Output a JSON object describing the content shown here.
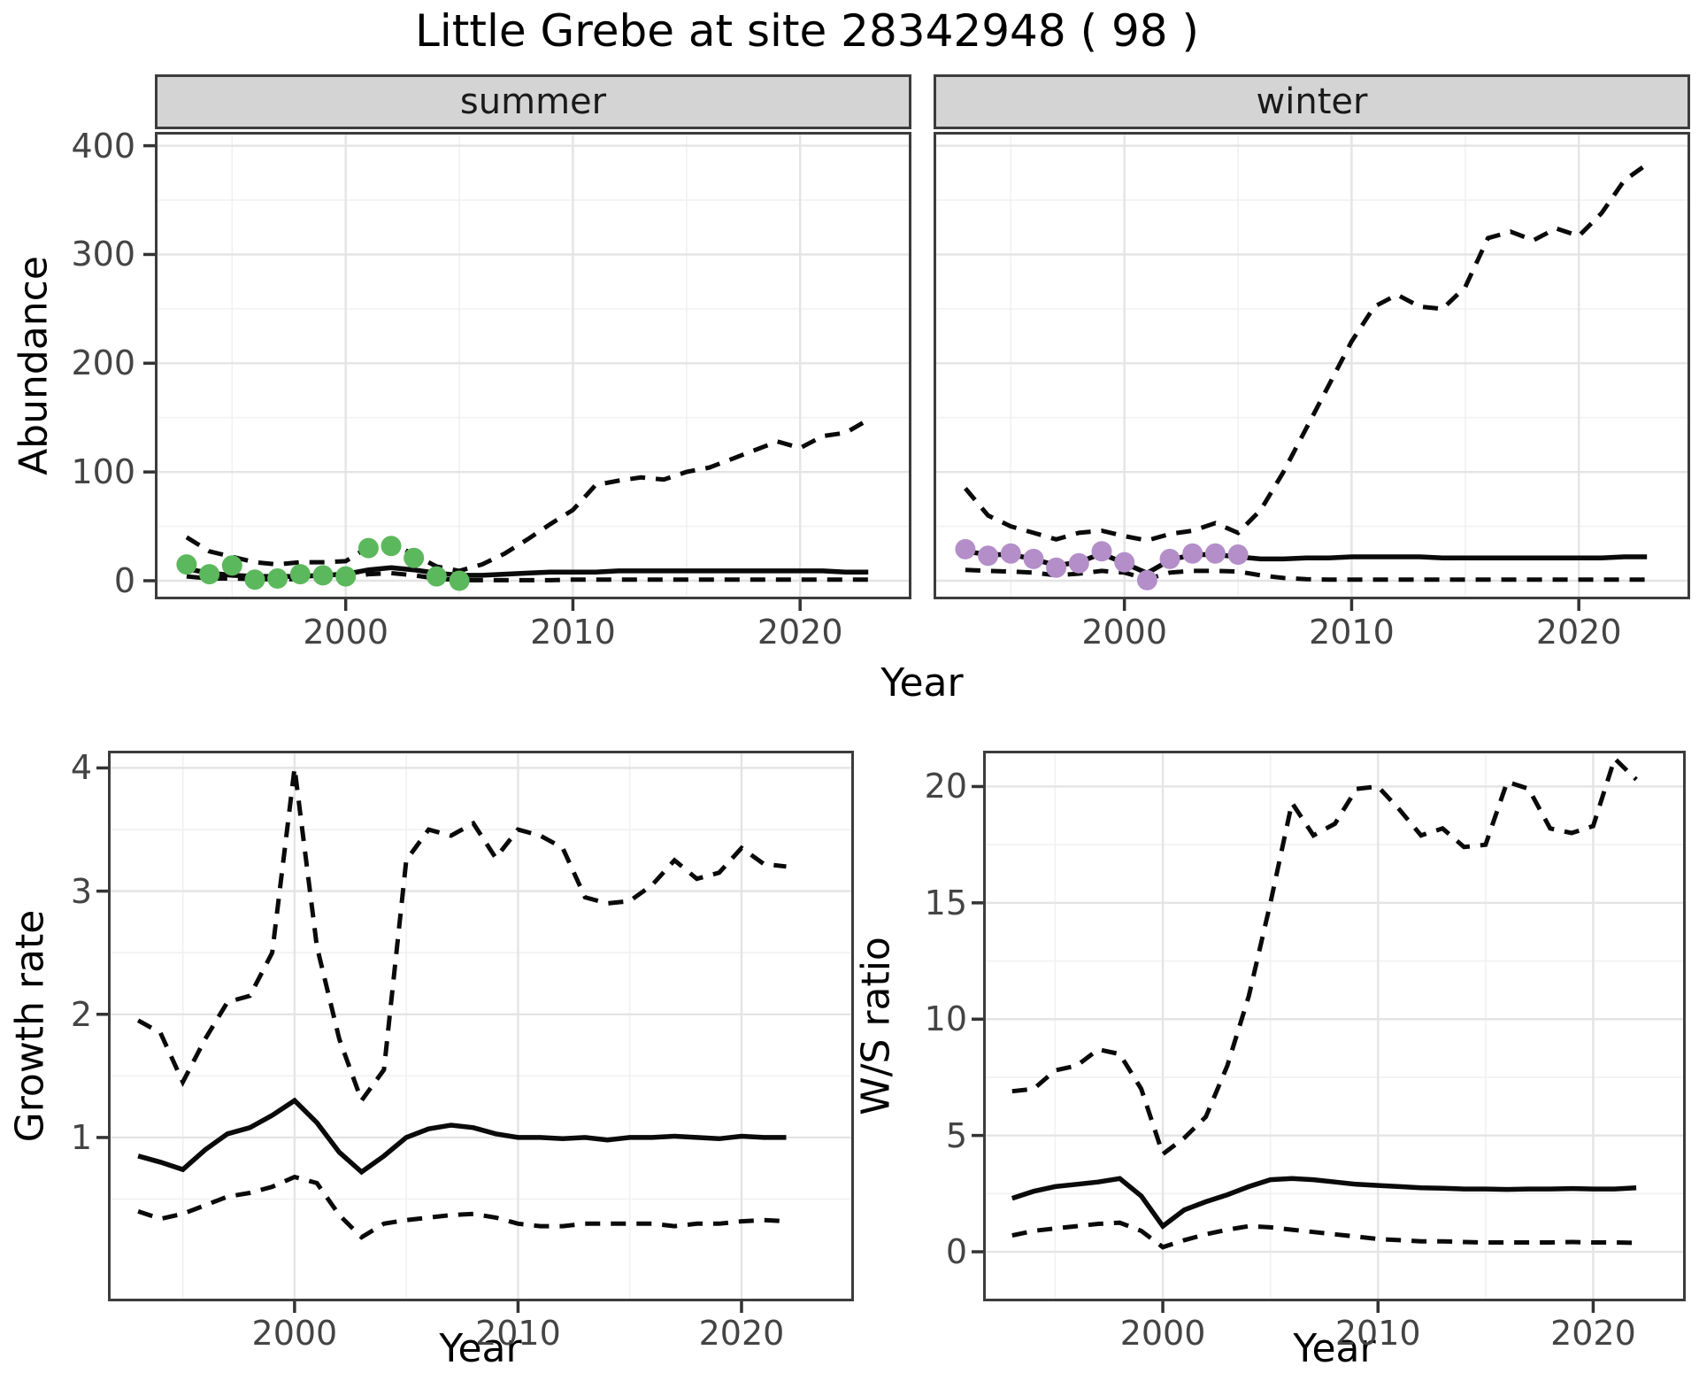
{
  "title": "Little Grebe at site 28342948 ( 98 )",
  "colors": {
    "summer_point": "#5CB85C",
    "winter_point": "#B48EC8",
    "line": "#0a0a0a",
    "strip_bg": "#D4D4D4",
    "panel_border": "#3C3C3C",
    "grid_major": "#E4E4E4",
    "grid_minor": "#F1F1F1",
    "tick_text": "#444444",
    "tick_mark": "#333333"
  },
  "facets": {
    "summer": "summer",
    "winter": "winter"
  },
  "axis_labels": {
    "abundance": "Abundance",
    "growth": "Growth rate",
    "ws": "W/S ratio",
    "year_top": "Year",
    "year_bottom_left": "Year",
    "year_bottom_right": "Year"
  },
  "chart_data": [
    {
      "id": "summer",
      "type": "line",
      "facet_label": "summer",
      "ylabel": "Abundance",
      "xlabel": "Year",
      "x_domain": [
        1991.6,
        2024.9
      ],
      "y_domain": [
        -17.1,
        412.7
      ],
      "x_major": [
        2000,
        2010,
        2020
      ],
      "x_minor": [
        1995,
        2005,
        2015
      ],
      "y_major": [
        0,
        100,
        200,
        300,
        400
      ],
      "y_minor": [
        50,
        150,
        250,
        350
      ],
      "point_color": "#5CB85C",
      "series": [
        {
          "name": "upper-ci",
          "style": "dashed",
          "x_start": 1993,
          "values": [
            40,
            27,
            22,
            17,
            15,
            17,
            17,
            18,
            31,
            35,
            24,
            13,
            9,
            15,
            25,
            38,
            52,
            65,
            88,
            92,
            95,
            93,
            100,
            104,
            112,
            120,
            128,
            122,
            133,
            136,
            148
          ]
        },
        {
          "name": "median",
          "style": "solid",
          "x_start": 1993,
          "values": [
            11,
            7,
            5,
            4,
            4,
            4,
            5,
            6,
            10,
            12,
            10,
            7,
            5,
            5,
            6,
            7,
            8,
            8,
            8,
            9,
            9,
            9,
            9,
            9,
            9,
            9,
            9,
            9,
            9,
            8,
            8
          ]
        },
        {
          "name": "lower-ci",
          "style": "dashed",
          "x_start": 1993,
          "values": [
            4,
            2,
            2,
            1.5,
            1.5,
            1.5,
            1.5,
            2,
            6,
            7,
            5,
            2,
            0.5,
            0.5,
            0.5,
            0.5,
            0.5,
            1,
            1,
            1,
            1,
            1,
            1,
            1,
            1,
            1,
            1,
            1,
            1,
            1,
            1
          ]
        },
        {
          "name": "observations",
          "style": "points",
          "x_start": 1993,
          "values": [
            15,
            6,
            14,
            1,
            2,
            6,
            5,
            4,
            30,
            32,
            21,
            4,
            0
          ]
        }
      ]
    },
    {
      "id": "winter",
      "type": "line",
      "facet_label": "winter",
      "ylabel": "Abundance",
      "xlabel": "Year",
      "x_domain": [
        1991.6,
        2024.9
      ],
      "y_domain": [
        -17.1,
        412.7
      ],
      "x_major": [
        2000,
        2010,
        2020
      ],
      "x_minor": [
        1995,
        2005,
        2015
      ],
      "y_major": [
        0,
        100,
        200,
        300,
        400
      ],
      "y_minor": [
        50,
        150,
        250,
        350
      ],
      "point_color": "#B48EC8",
      "series": [
        {
          "name": "upper-ci",
          "style": "dashed",
          "x_start": 1993,
          "values": [
            85,
            60,
            50,
            44,
            38,
            44,
            46,
            41,
            37,
            43,
            46,
            53,
            44,
            65,
            100,
            140,
            180,
            220,
            252,
            263,
            252,
            250,
            270,
            315,
            321,
            313,
            324,
            317,
            338,
            368,
            383
          ]
        },
        {
          "name": "median",
          "style": "solid",
          "x_start": 1993,
          "values": [
            27,
            24,
            24,
            20,
            14,
            17,
            25,
            16,
            7,
            19,
            24,
            24,
            22,
            20,
            20,
            21,
            21,
            22,
            22,
            22,
            22,
            21,
            21,
            21,
            21,
            21,
            21,
            21,
            21,
            22,
            22
          ]
        },
        {
          "name": "lower-ci",
          "style": "dashed",
          "x_start": 1993,
          "values": [
            10,
            9,
            8.5,
            7.5,
            5,
            6.5,
            9,
            7.5,
            1.5,
            7.5,
            9,
            9,
            8.5,
            5,
            2.5,
            1.5,
            1,
            1,
            1,
            1,
            1,
            1,
            1,
            1,
            1,
            1,
            1,
            1,
            1,
            1,
            1
          ]
        },
        {
          "name": "observations",
          "style": "points",
          "x_start": 1993,
          "values": [
            29,
            23,
            25,
            20,
            12,
            16,
            27,
            17,
            0.5,
            20,
            25,
            25,
            24
          ]
        }
      ]
    },
    {
      "id": "growth",
      "type": "line",
      "ylabel": "Growth rate",
      "xlabel": "Year",
      "x_domain": [
        1991.65,
        2025.03
      ],
      "y_domain": [
        -0.33,
        4.14
      ],
      "x_major": [
        2000,
        2010,
        2020
      ],
      "x_minor": [
        1995,
        2005,
        2015,
        2025
      ],
      "y_major": [
        1,
        2,
        3,
        4
      ],
      "y_minor": [
        0.5,
        1.5,
        2.5,
        3.5
      ],
      "series": [
        {
          "name": "upper-ci",
          "style": "dashed",
          "x_start": 1993,
          "values": [
            1.95,
            1.85,
            1.45,
            1.8,
            2.1,
            2.15,
            2.5,
            4.0,
            2.55,
            1.8,
            1.3,
            1.55,
            3.25,
            3.5,
            3.45,
            3.55,
            3.27,
            3.5,
            3.45,
            3.35,
            2.95,
            2.9,
            2.92,
            3.05,
            3.25,
            3.1,
            3.15,
            3.35,
            3.22,
            3.2
          ]
        },
        {
          "name": "median",
          "style": "solid",
          "x_start": 1993,
          "values": [
            0.85,
            0.8,
            0.74,
            0.9,
            1.03,
            1.08,
            1.18,
            1.3,
            1.12,
            0.88,
            0.72,
            0.85,
            1.0,
            1.07,
            1.1,
            1.08,
            1.03,
            1.0,
            1.0,
            0.99,
            1.0,
            0.98,
            1.0,
            1.0,
            1.01,
            1.0,
            0.99,
            1.01,
            1.0,
            1.0
          ]
        },
        {
          "name": "lower-ci",
          "style": "dashed",
          "x_start": 1993,
          "values": [
            0.4,
            0.34,
            0.38,
            0.45,
            0.52,
            0.55,
            0.6,
            0.68,
            0.63,
            0.37,
            0.19,
            0.3,
            0.33,
            0.35,
            0.37,
            0.38,
            0.35,
            0.3,
            0.28,
            0.28,
            0.3,
            0.3,
            0.3,
            0.3,
            0.28,
            0.3,
            0.3,
            0.32,
            0.33,
            0.32
          ]
        }
      ]
    },
    {
      "id": "ws",
      "type": "line",
      "ylabel": "W/S ratio",
      "xlabel": "Year",
      "x_domain": [
        1991.65,
        2024.3
      ],
      "y_domain": [
        -2.13,
        21.54
      ],
      "x_major": [
        2000,
        2010,
        2020
      ],
      "x_minor": [
        1995,
        2005,
        2015
      ],
      "y_major": [
        0,
        5,
        10,
        15,
        20
      ],
      "y_minor": [
        2.5,
        7.5,
        12.5,
        17.5
      ],
      "series": [
        {
          "name": "upper-ci",
          "style": "dashed",
          "x_start": 1993,
          "values": [
            6.9,
            7.0,
            7.8,
            8.0,
            8.7,
            8.5,
            7.0,
            4.2,
            4.9,
            5.8,
            8.0,
            11.0,
            15.0,
            19.3,
            17.9,
            18.4,
            19.9,
            20.0,
            19.0,
            17.9,
            18.2,
            17.4,
            17.5,
            20.2,
            19.9,
            18.2,
            18.0,
            18.3,
            21.2,
            20.3
          ]
        },
        {
          "name": "median",
          "style": "solid",
          "x_start": 1993,
          "values": [
            2.3,
            2.6,
            2.8,
            2.9,
            3.0,
            3.15,
            2.4,
            1.1,
            1.8,
            2.15,
            2.45,
            2.8,
            3.1,
            3.15,
            3.1,
            3.0,
            2.9,
            2.85,
            2.8,
            2.75,
            2.73,
            2.7,
            2.7,
            2.68,
            2.7,
            2.7,
            2.72,
            2.7,
            2.7,
            2.75
          ]
        },
        {
          "name": "lower-ci",
          "style": "dashed",
          "x_start": 1993,
          "values": [
            0.7,
            0.9,
            1.0,
            1.1,
            1.2,
            1.25,
            0.9,
            0.2,
            0.5,
            0.75,
            0.95,
            1.1,
            1.05,
            0.95,
            0.85,
            0.75,
            0.65,
            0.55,
            0.5,
            0.45,
            0.45,
            0.42,
            0.4,
            0.4,
            0.4,
            0.4,
            0.42,
            0.4,
            0.4,
            0.38
          ]
        }
      ]
    }
  ]
}
